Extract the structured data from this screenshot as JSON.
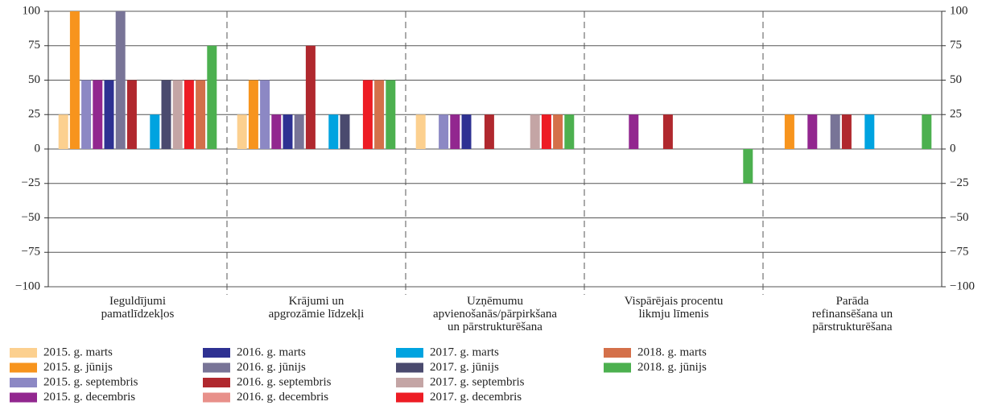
{
  "chart_data": {
    "type": "bar",
    "categories": [
      "Ieguldījumi\npamatlīdzekļos",
      "Krājumi un\napgrozāmie līdzekļi",
      "Uzņēmumu\napvienošanās/pārpirkšana\nun pārstrukturēšana",
      "Vispārējais procentu\nlikmju līmenis",
      "Parāda\nrefinansēšana un\npārstrukturēšana"
    ],
    "series": [
      {
        "name": "2015. g. marts",
        "color": "#fcd08f",
        "values": [
          25,
          25,
          25,
          0,
          0
        ]
      },
      {
        "name": "2015. g. jūnijs",
        "color": "#f7941d",
        "values": [
          100,
          50,
          0,
          0,
          25
        ]
      },
      {
        "name": "2015. g. septembris",
        "color": "#8c88c4",
        "values": [
          50,
          50,
          25,
          0,
          0
        ]
      },
      {
        "name": "2015. g. decembris",
        "color": "#92278f",
        "values": [
          50,
          25,
          25,
          25,
          25
        ]
      },
      {
        "name": "2016. g. marts",
        "color": "#2e3192",
        "values": [
          50,
          25,
          25,
          0,
          0
        ]
      },
      {
        "name": "2016. g. jūnijs",
        "color": "#787497",
        "values": [
          100,
          25,
          0,
          0,
          25
        ]
      },
      {
        "name": "2016. g. septembris",
        "color": "#b0282e",
        "values": [
          50,
          75,
          25,
          25,
          25
        ]
      },
      {
        "name": "2016. g. decembris",
        "color": "#e8908a",
        "values": [
          0,
          0,
          0,
          0,
          0
        ]
      },
      {
        "name": "2017. g. marts",
        "color": "#00a3e0",
        "values": [
          25,
          25,
          0,
          0,
          25
        ]
      },
      {
        "name": "2017. g. jūnijs",
        "color": "#4a4a6e",
        "values": [
          50,
          25,
          0,
          0,
          0
        ]
      },
      {
        "name": "2017. g. septembris",
        "color": "#c4a5a5",
        "values": [
          50,
          0,
          25,
          0,
          0
        ]
      },
      {
        "name": "2017. g. decembris",
        "color": "#ed1c24",
        "values": [
          50,
          50,
          25,
          0,
          0
        ]
      },
      {
        "name": "2018. g. marts",
        "color": "#d4704a",
        "values": [
          50,
          50,
          25,
          0,
          0
        ]
      },
      {
        "name": "2018. g. jūnijs",
        "color": "#4cb04f",
        "values": [
          75,
          50,
          25,
          -25,
          25
        ]
      }
    ],
    "ylim": [
      -100,
      100
    ],
    "yticks": [
      {
        "value": -100,
        "label": "−100"
      },
      {
        "value": -75,
        "label": "−75"
      },
      {
        "value": -50,
        "label": "−50"
      },
      {
        "value": -25,
        "label": "−25"
      },
      0,
      25,
      50,
      75,
      100
    ],
    "grid": true
  }
}
